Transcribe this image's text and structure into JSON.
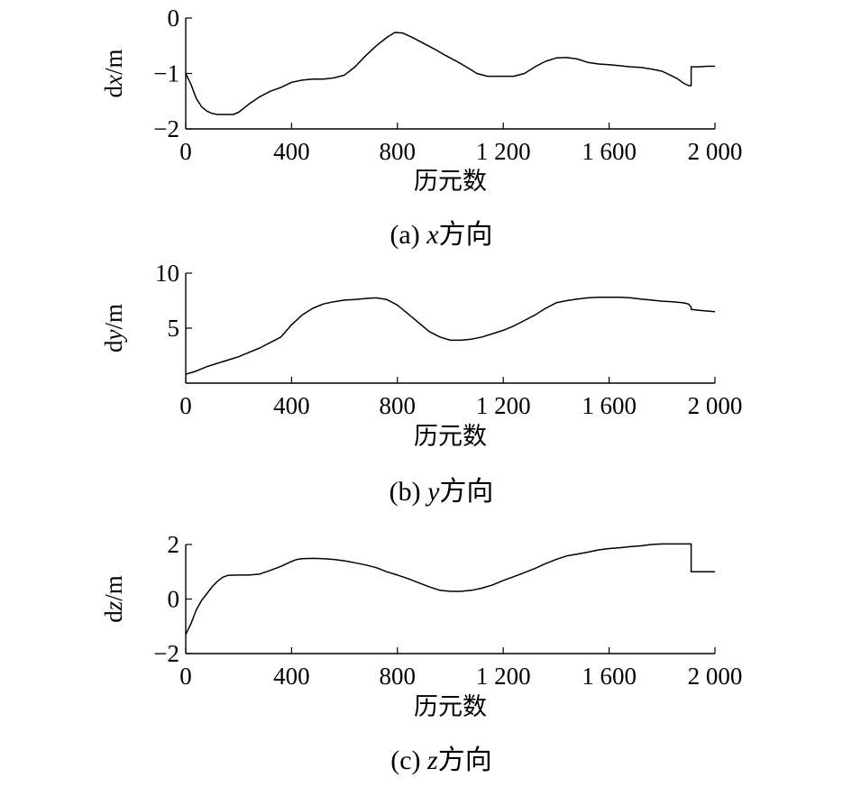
{
  "chart_data": [
    {
      "type": "line",
      "ylabel": "dx/m",
      "xlabel": "历元数",
      "caption": "(a) x方向",
      "xlim": [
        0,
        2000
      ],
      "ylim": [
        -2,
        0
      ],
      "xticks": [
        0,
        400,
        800,
        1200,
        1600,
        2000
      ],
      "xtick_labels": [
        "0",
        "400",
        "800",
        "1 200",
        "1 600",
        "2 000"
      ],
      "yticks": [
        0,
        -1,
        -2
      ],
      "ytick_labels": [
        "0",
        "−1",
        "−2"
      ],
      "series": [
        {
          "x": [
            0,
            20,
            40,
            60,
            80,
            100,
            120,
            140,
            160,
            180,
            200,
            240,
            280,
            320,
            360,
            400,
            440,
            480,
            520,
            560,
            600,
            640,
            680,
            720,
            760,
            790,
            820,
            860,
            900,
            940,
            980,
            1020,
            1060,
            1100,
            1140,
            1180,
            1200,
            1240,
            1280,
            1320,
            1360,
            1400,
            1440,
            1480,
            1520,
            1560,
            1600,
            1640,
            1680,
            1720,
            1760,
            1800,
            1840,
            1860,
            1880,
            1900,
            1910,
            1910,
            1940,
            1970,
            2000
          ],
          "y": [
            -1.0,
            -1.2,
            -1.45,
            -1.6,
            -1.68,
            -1.72,
            -1.74,
            -1.74,
            -1.74,
            -1.74,
            -1.7,
            -1.55,
            -1.42,
            -1.32,
            -1.25,
            -1.16,
            -1.12,
            -1.1,
            -1.1,
            -1.08,
            -1.03,
            -0.88,
            -0.68,
            -0.5,
            -0.35,
            -0.26,
            -0.27,
            -0.36,
            -0.46,
            -0.56,
            -0.67,
            -0.77,
            -0.88,
            -1.0,
            -1.05,
            -1.05,
            -1.05,
            -1.05,
            -1.0,
            -0.88,
            -0.78,
            -0.72,
            -0.71,
            -0.74,
            -0.8,
            -0.83,
            -0.84,
            -0.86,
            -0.88,
            -0.89,
            -0.92,
            -0.96,
            -1.05,
            -1.1,
            -1.17,
            -1.22,
            -1.22,
            -0.88,
            -0.88,
            -0.87,
            -0.87
          ]
        }
      ]
    },
    {
      "type": "line",
      "ylabel": "dy/m",
      "xlabel": "历元数",
      "caption": "(b) y方向",
      "xlim": [
        0,
        2000
      ],
      "ylim": [
        0,
        10
      ],
      "xticks": [
        0,
        400,
        800,
        1200,
        1600,
        2000
      ],
      "xtick_labels": [
        "0",
        "400",
        "800",
        "1 200",
        "1 600",
        "2 000"
      ],
      "yticks": [
        10,
        5
      ],
      "ytick_labels": [
        "10",
        "5"
      ],
      "series": [
        {
          "x": [
            0,
            40,
            80,
            120,
            160,
            200,
            240,
            280,
            320,
            360,
            400,
            440,
            480,
            520,
            560,
            600,
            640,
            680,
            720,
            760,
            800,
            840,
            880,
            920,
            960,
            1000,
            1040,
            1080,
            1120,
            1160,
            1200,
            1240,
            1280,
            1320,
            1360,
            1400,
            1440,
            1480,
            1520,
            1560,
            1600,
            1640,
            1680,
            1720,
            1760,
            1800,
            1840,
            1880,
            1900,
            1910,
            1910,
            1950,
            2000
          ],
          "y": [
            0.8,
            1.1,
            1.5,
            1.8,
            2.1,
            2.4,
            2.8,
            3.2,
            3.7,
            4.2,
            5.3,
            6.2,
            6.8,
            7.2,
            7.4,
            7.55,
            7.6,
            7.7,
            7.75,
            7.6,
            7.1,
            6.3,
            5.5,
            4.7,
            4.2,
            3.9,
            3.9,
            4.0,
            4.2,
            4.5,
            4.8,
            5.2,
            5.7,
            6.2,
            6.8,
            7.3,
            7.5,
            7.65,
            7.75,
            7.8,
            7.8,
            7.8,
            7.75,
            7.65,
            7.55,
            7.45,
            7.4,
            7.3,
            7.2,
            6.9,
            6.7,
            6.6,
            6.5
          ]
        }
      ]
    },
    {
      "type": "line",
      "ylabel": "dz/m",
      "xlabel": "历元数",
      "caption": "(c) z方向",
      "xlim": [
        0,
        2000
      ],
      "ylim": [
        -2,
        2
      ],
      "xticks": [
        0,
        400,
        800,
        1200,
        1600,
        2000
      ],
      "xtick_labels": [
        "0",
        "400",
        "800",
        "1 200",
        "1 600",
        "2 000"
      ],
      "yticks": [
        2,
        0,
        -2
      ],
      "ytick_labels": [
        "2",
        "0",
        "−2"
      ],
      "series": [
        {
          "x": [
            0,
            20,
            40,
            60,
            80,
            100,
            120,
            140,
            160,
            200,
            240,
            280,
            320,
            360,
            400,
            420,
            440,
            480,
            520,
            560,
            600,
            640,
            680,
            720,
            760,
            800,
            840,
            880,
            920,
            960,
            1000,
            1040,
            1080,
            1120,
            1160,
            1200,
            1240,
            1280,
            1320,
            1360,
            1400,
            1440,
            1480,
            1520,
            1560,
            1600,
            1640,
            1680,
            1720,
            1760,
            1800,
            1840,
            1880,
            1910,
            1910,
            1950,
            2000
          ],
          "y": [
            -1.3,
            -0.9,
            -0.4,
            -0.05,
            0.2,
            0.45,
            0.65,
            0.8,
            0.87,
            0.88,
            0.88,
            0.92,
            1.05,
            1.2,
            1.38,
            1.45,
            1.48,
            1.49,
            1.48,
            1.45,
            1.4,
            1.33,
            1.25,
            1.15,
            1.0,
            0.88,
            0.75,
            0.6,
            0.45,
            0.32,
            0.28,
            0.28,
            0.32,
            0.4,
            0.52,
            0.68,
            0.82,
            0.97,
            1.12,
            1.3,
            1.45,
            1.58,
            1.65,
            1.72,
            1.8,
            1.85,
            1.88,
            1.92,
            1.95,
            2.0,
            2.02,
            2.02,
            2.02,
            2.02,
            1.0,
            1.0,
            1.0
          ]
        }
      ]
    }
  ]
}
